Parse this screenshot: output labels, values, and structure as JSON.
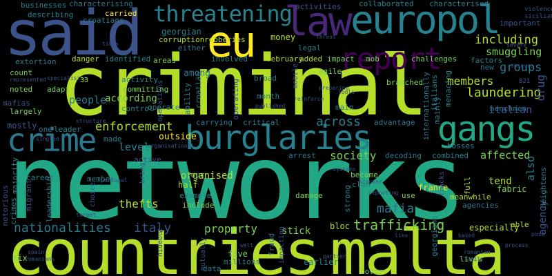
{
  "words": [
    {
      "t": "networks",
      "c": "#22a884"
    },
    {
      "t": "countries",
      "c": "#b5de2b"
    },
    {
      "t": "malta",
      "c": "#b5de2b"
    },
    {
      "t": "criminal",
      "c": "#b5de2b"
    },
    {
      "t": "said",
      "c": "#3b528b"
    },
    {
      "t": "eu",
      "c": "#fde725"
    },
    {
      "t": "law",
      "c": "#482878"
    },
    {
      "t": "europol",
      "c": "#26828e"
    },
    {
      "t": "report",
      "c": "#440154"
    },
    {
      "t": "threatening",
      "c": "#26828e"
    },
    {
      "t": "crime",
      "c": "#2a788e"
    },
    {
      "t": "burglaries",
      "c": "#26828e"
    },
    {
      "t": "gangs",
      "c": "#22a884"
    },
    {
      "t": "including",
      "c": "#b5de2b"
    },
    {
      "t": "smuggling",
      "c": "#7ad151"
    },
    {
      "t": "groups",
      "c": "#2a788e"
    },
    {
      "t": "members",
      "c": "#b5de2b"
    },
    {
      "t": "laundering",
      "c": "#b5de2b"
    },
    {
      "t": "enforcement",
      "c": "#b5de2b"
    },
    {
      "t": "trafficking",
      "c": "#7ad151"
    },
    {
      "t": "nationalities",
      "c": "#2a788e"
    },
    {
      "t": "italy",
      "c": "#3b528b"
    },
    {
      "t": "property",
      "c": "#7ad151"
    },
    {
      "t": "thefts",
      "c": "#b5de2b"
    },
    {
      "t": "mafia",
      "c": "#2a788e"
    },
    {
      "t": "society",
      "c": "#7ad151"
    },
    {
      "t": "across",
      "c": "#26828e"
    },
    {
      "t": "georgian",
      "c": "#26828e"
    },
    {
      "t": "people",
      "c": "#2a788e"
    },
    {
      "t": "according",
      "c": "#7ad151"
    },
    {
      "t": "level",
      "c": "#26828e"
    },
    {
      "t": "outside",
      "c": "#fde725"
    },
    {
      "t": "organised",
      "c": "#b5de2b"
    },
    {
      "t": "affected",
      "c": "#7ad151"
    },
    {
      "t": "italian",
      "c": "#3b528b"
    },
    {
      "t": "drug",
      "c": "#3b528b"
    },
    {
      "t": "stick",
      "c": "#7ad151"
    },
    {
      "t": "money",
      "c": "#b5de2b"
    },
    {
      "t": "among",
      "c": "#2a788e"
    },
    {
      "t": "activity",
      "c": "#26828e"
    },
    {
      "t": "committing",
      "c": "#7ad151"
    },
    {
      "t": "mostly",
      "c": "#3b528b"
    },
    {
      "t": "five",
      "c": "#7ad151"
    },
    {
      "t": "millions",
      "c": "#26828e"
    },
    {
      "t": "mix",
      "c": "#7ad151"
    },
    {
      "t": "include",
      "c": "#7ad151"
    },
    {
      "t": "half",
      "c": "#b5de2b"
    },
    {
      "t": "example",
      "c": "#26828e"
    },
    {
      "t": "four",
      "c": "#7ad151"
    },
    {
      "t": "also",
      "c": "#26828e"
    },
    {
      "t": "agency",
      "c": "#3b528b"
    },
    {
      "t": "tend",
      "c": "#b5de2b"
    },
    {
      "t": "fabric",
      "c": "#7ad151"
    },
    {
      "t": "agencies",
      "c": "#2a788e"
    },
    {
      "t": "meanwhile",
      "c": "#b5de2b"
    },
    {
      "t": "france",
      "c": "#fde725"
    },
    {
      "t": "bloc",
      "c": "#b5de2b"
    },
    {
      "t": "clan",
      "c": "#26828e"
    },
    {
      "t": "become",
      "c": "#7ad151"
    },
    {
      "t": "use",
      "c": "#7ad151"
    },
    {
      "t": "damage",
      "c": "#7ad151"
    },
    {
      "t": "earlier",
      "c": "#26828e"
    },
    {
      "t": "data",
      "c": "#2a788e"
    },
    {
      "t": "cover",
      "c": "#7ad151"
    },
    {
      "t": "lives",
      "c": "#7ad151"
    },
    {
      "t": "especially",
      "c": "#b5de2b"
    },
    {
      "t": "able",
      "c": "#b5de2b"
    },
    {
      "t": "factors",
      "c": "#26828e"
    },
    {
      "t": "new",
      "c": "#2a788e"
    },
    {
      "t": "main",
      "c": "#2a788e"
    },
    {
      "t": "branched",
      "c": "#7ad151"
    },
    {
      "t": "month",
      "c": "#26828e"
    },
    {
      "t": "february",
      "c": "#b5de2b"
    },
    {
      "t": "added",
      "c": "#b5de2b"
    },
    {
      "t": "impact",
      "c": "#7ad151"
    },
    {
      "t": "mob",
      "c": "#7ad151"
    },
    {
      "t": "challenges",
      "c": "#7ad151"
    },
    {
      "t": "involved",
      "c": "#26828e"
    },
    {
      "t": "identified",
      "c": "#26828e"
    },
    {
      "t": "areas",
      "c": "#7ad151"
    },
    {
      "t": "danger",
      "c": "#b5de2b"
    },
    {
      "t": "extortion",
      "c": "#26828e"
    },
    {
      "t": "count",
      "c": "#7ad151"
    },
    {
      "t": "noted",
      "c": "#7ad151"
    },
    {
      "t": "adapt",
      "c": "#7ad151"
    },
    {
      "t": "largely",
      "c": "#7ad151"
    },
    {
      "t": "mafias",
      "c": "#3b528b"
    },
    {
      "t": "describing",
      "c": "#26828e"
    },
    {
      "t": "businesses",
      "c": "#26828e"
    },
    {
      "t": "characterising",
      "c": "#2a788e"
    },
    {
      "t": "carried",
      "c": "#fde725"
    },
    {
      "t": "croatians",
      "c": "#26828e"
    },
    {
      "t": "corruption",
      "c": "#b5de2b"
    },
    {
      "t": "either",
      "c": "#2a788e"
    },
    {
      "t": "robberies",
      "c": "#b5de2b"
    },
    {
      "t": "operate",
      "c": "#26828e"
    },
    {
      "t": "control",
      "c": "#26828e"
    },
    {
      "t": "carrying",
      "c": "#2a788e"
    },
    {
      "t": "critical",
      "c": "#26828e"
    },
    {
      "t": "leader",
      "c": "#26828e"
    },
    {
      "t": "one",
      "c": "#2a788e"
    },
    {
      "t": "made",
      "c": "#26828e"
    },
    {
      "t": "career",
      "c": "#26828e"
    },
    {
      "t": "member",
      "c": "#26828e"
    },
    {
      "t": "active",
      "c": "#3b528b"
    },
    {
      "t": "arrest",
      "c": "#2a788e"
    },
    {
      "t": "decoding",
      "c": "#2a788e"
    },
    {
      "t": "combined",
      "c": "#26828e"
    },
    {
      "t": "bosses",
      "c": "#26828e"
    },
    {
      "t": "collaborated",
      "c": "#26828e"
    },
    {
      "t": "characterised",
      "c": "#26828e"
    },
    {
      "t": "activities",
      "c": "#3b528b"
    },
    {
      "t": "legal",
      "c": "#2a788e"
    },
    {
      "t": "agile",
      "c": "#7ad151"
    },
    {
      "t": "broad",
      "c": "#2a788e"
    },
    {
      "t": "advantage",
      "c": "#2a788e"
    },
    {
      "t": "strong",
      "c": "#26828e"
    },
    {
      "t": "henchmen",
      "c": "#2a788e"
    },
    {
      "t": "important",
      "c": "#3b528b"
    },
    {
      "t": "menacing",
      "c": "#26828e"
    },
    {
      "t": "italians",
      "c": "#26828e"
    },
    {
      "t": "internationally",
      "c": "#2a788e"
    },
    {
      "t": "mainly",
      "c": "#2a788e"
    },
    {
      "t": "georgians",
      "c": "#26828e"
    },
    {
      "t": "heightens",
      "c": "#26828e"
    },
    {
      "t": "violence",
      "c": "#3b528b"
    },
    {
      "t": "sicilian",
      "c": "#3b528b"
    },
    {
      "t": "threat",
      "c": "#3b528b"
    },
    {
      "t": "times",
      "c": "#3b528b"
    },
    {
      "t": "specialising",
      "c": "#3b528b"
    },
    {
      "t": "represented",
      "c": "#3b528b"
    },
    {
      "t": "preparing",
      "c": "#3b528b"
    },
    {
      "t": "reinforce",
      "c": "#3b528b"
    },
    {
      "t": "published",
      "c": "#3b528b"
    },
    {
      "t": "structure",
      "c": "#3b528b"
    },
    {
      "t": "singled",
      "c": "#3b528b"
    },
    {
      "t": "organisational",
      "c": "#3b528b"
    },
    {
      "t": "scouter",
      "c": "#3b528b"
    },
    {
      "t": "reporting",
      "c": "#3b528b"
    },
    {
      "t": "systems",
      "c": "#3b528b"
    },
    {
      "t": "portugal",
      "c": "#3b528b"
    },
    {
      "t": "spain",
      "c": "#3b528b"
    },
    {
      "t": "romanians",
      "c": "#3b528b"
    },
    {
      "t": "target",
      "c": "#3b528b"
    },
    {
      "t": "well",
      "c": "#3b528b"
    },
    {
      "t": "partner",
      "c": "#3b528b"
    },
    {
      "t": "tools",
      "c": "#3b528b"
    },
    {
      "t": "romanian",
      "c": "#3b528b"
    },
    {
      "t": "family",
      "c": "#3b528b"
    },
    {
      "t": "based",
      "c": "#3b528b"
    },
    {
      "t": "process",
      "c": "#3b528b"
    },
    {
      "t": "pose",
      "c": "#3b528b"
    },
    {
      "t": "like",
      "c": "#3b528b"
    },
    {
      "t": "severe",
      "c": "#3b528b"
    },
    {
      "t": "thieves",
      "c": "#3b528b"
    },
    {
      "t": "821",
      "c": "#3b528b"
    },
    {
      "t": "33",
      "c": "#b5de2b"
    },
    {
      "t": "ability",
      "c": "#26828e"
    },
    {
      "t": "fraud",
      "c": "#2a788e"
    },
    {
      "t": "impacting",
      "c": "#3b528b"
    },
    {
      "t": "mutually",
      "c": "#3b528b"
    },
    {
      "t": "hideout",
      "c": "#3b528b"
    },
    {
      "t": "leadership",
      "c": "#26828e"
    },
    {
      "t": "majority",
      "c": "#26828e"
    },
    {
      "t": "migrant",
      "c": "#3b528b"
    },
    {
      "t": "notorious",
      "c": "#3b528b"
    },
    {
      "t": "crimes",
      "c": "#26828e"
    },
    {
      "t": "choice",
      "c": "#3b528b"
    },
    {
      "t": "full",
      "c": "#b5de2b"
    },
    {
      "t": "mobile",
      "c": "#3b528b"
    },
    {
      "t": "operating",
      "c": "#3b528b"
    },
    {
      "t": "croatian",
      "c": "#26828e"
    },
    {
      "t": "operations",
      "c": "#3b528b"
    },
    {
      "t": "bring",
      "c": "#3b528b"
    },
    {
      "t": "tracks",
      "c": "#3b528b"
    }
  ]
}
